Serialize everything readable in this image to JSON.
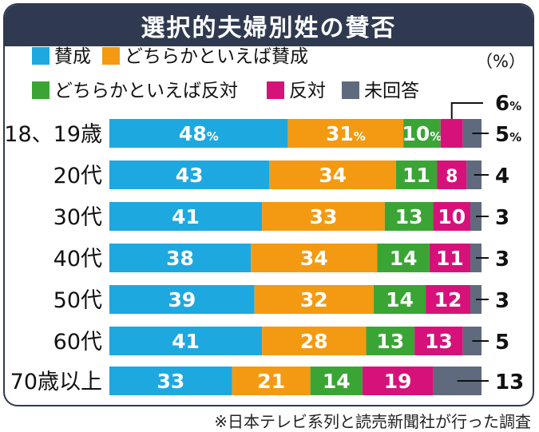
{
  "title": "選択的夫婦別姓の賛否",
  "source_note": "※日本テレビ系列と読売新聞社が行った調査",
  "chart_data": {
    "type": "bar",
    "orientation": "horizontal",
    "stacked": true,
    "unit_label": "（%）",
    "percent_sign": "%",
    "categories": [
      "18、19歳",
      "20代",
      "30代",
      "40代",
      "50代",
      "60代",
      "70歳以上"
    ],
    "series": [
      {
        "name": "賛成",
        "color": "#1ea8e0",
        "values": [
          48,
          43,
          41,
          38,
          39,
          41,
          33
        ]
      },
      {
        "name": "どちらかといえば賛成",
        "color": "#f39a12",
        "values": [
          31,
          34,
          33,
          34,
          32,
          28,
          21
        ]
      },
      {
        "name": "どちらかといえば反対",
        "color": "#3aa535",
        "values": [
          10,
          11,
          13,
          14,
          14,
          13,
          14
        ]
      },
      {
        "name": "反対",
        "color": "#d6127a",
        "values": [
          6,
          8,
          10,
          11,
          12,
          13,
          19
        ]
      },
      {
        "name": "未回答",
        "color": "#5f6a7e",
        "values": [
          5,
          4,
          3,
          3,
          3,
          5,
          13
        ]
      }
    ],
    "xlim": [
      0,
      100
    ],
    "colors": {
      "title_bg": "#2f3a50",
      "label_text": "#ffffff",
      "outside_text": "#111111"
    }
  }
}
